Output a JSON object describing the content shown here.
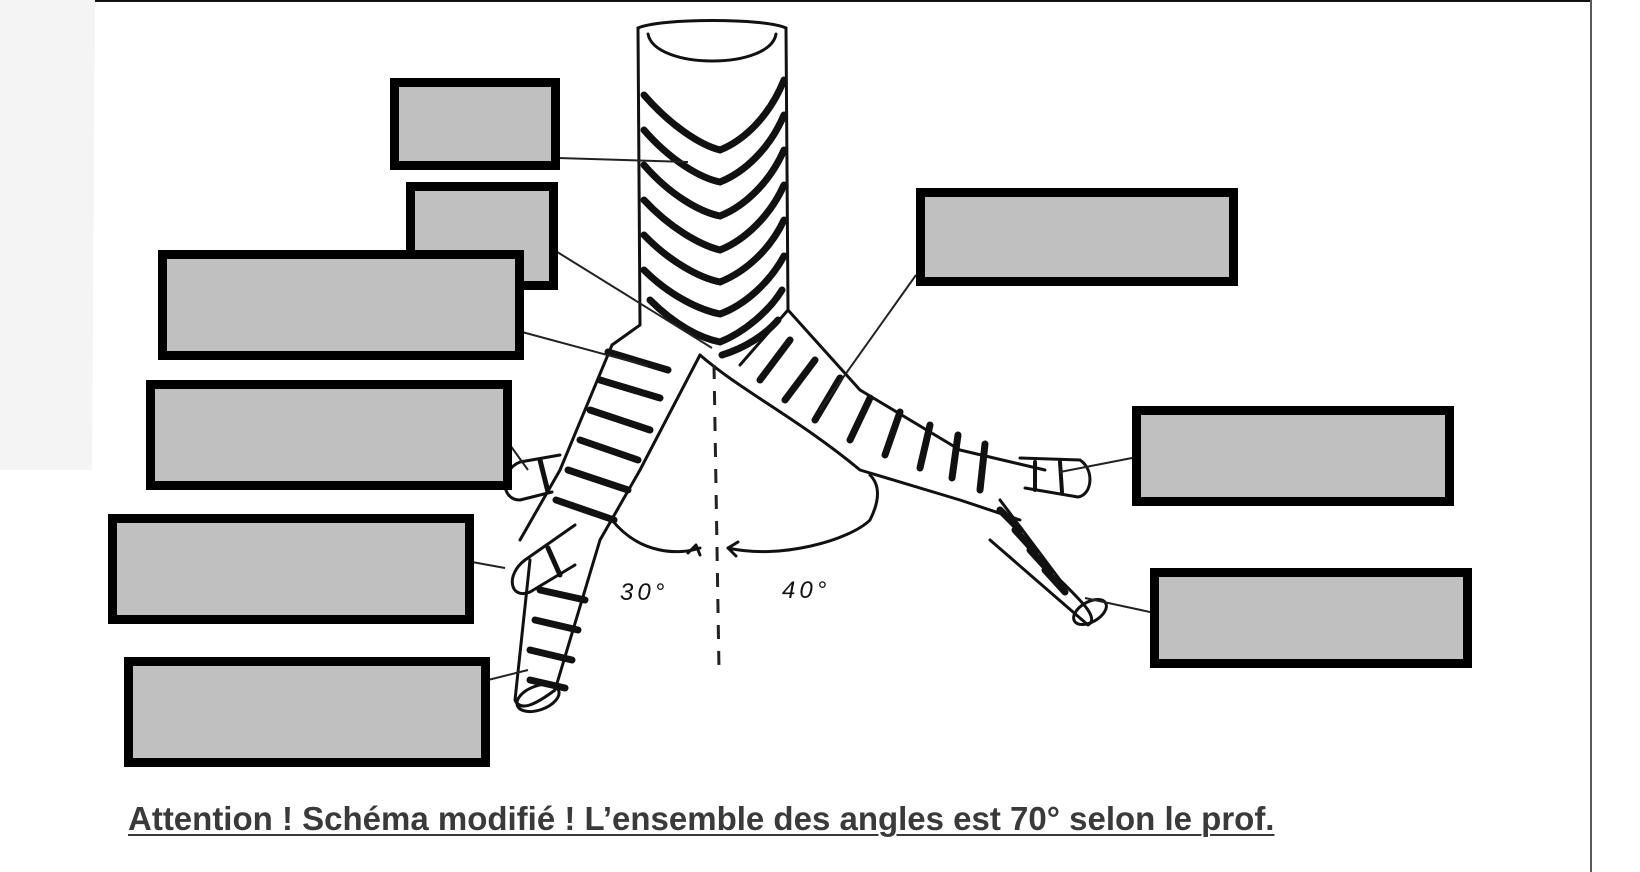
{
  "diagram": {
    "angles": {
      "right_main_bronchus": "30°",
      "left_main_bronchus": "40°"
    },
    "caption": "Attention ! Schéma modifié ! L’ensemble des angles est 70° selon le prof.",
    "label_boxes": [
      {
        "id": "box-trachea",
        "text": ""
      },
      {
        "id": "box-carina",
        "text": ""
      },
      {
        "id": "box-right-main-bronchus",
        "text": ""
      },
      {
        "id": "box-right-upper-lobe-bronchus",
        "text": ""
      },
      {
        "id": "box-right-middle-lobe-bronchus",
        "text": ""
      },
      {
        "id": "box-right-lower-lobe-bronchus",
        "text": ""
      },
      {
        "id": "box-left-main-bronchus",
        "text": ""
      },
      {
        "id": "box-left-upper-lobe-bronchus",
        "text": ""
      },
      {
        "id": "box-left-lower-lobe-bronchus",
        "text": ""
      }
    ],
    "colors": {
      "box_fill": "#c0c0c0",
      "box_border": "#000000",
      "ink": "#111111"
    }
  }
}
